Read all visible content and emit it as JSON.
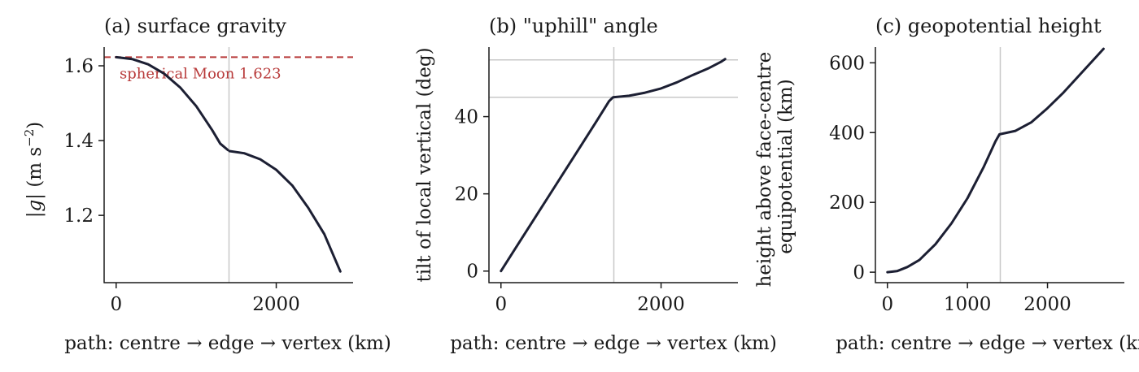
{
  "colors": {
    "series": "#1c1f33",
    "reference": "#b83a3a",
    "guide": "#c8c8c8",
    "axis": "#1a1a1a"
  },
  "chart_data": [
    {
      "type": "line",
      "title": "(a) surface gravity",
      "xlabel": "path: centre → edge → vertex (km)",
      "ylabel": "|g| (m s⁻²)",
      "xlim": [
        -150,
        2960
      ],
      "ylim": [
        1.02,
        1.65
      ],
      "xticks": [
        0,
        2000
      ],
      "yticks": [
        1.2,
        1.4,
        1.6
      ],
      "xtick_labels": [
        "0",
        "2000"
      ],
      "ytick_labels": [
        "1.2",
        "1.4",
        "1.6"
      ],
      "vlines": [
        1410
      ],
      "reference_line": {
        "y": 1.623,
        "label": "spherical Moon 1.623",
        "style": "dashed"
      },
      "series": [
        {
          "values": [
            [
              0,
              1.623
            ],
            [
              200,
              1.618
            ],
            [
              400,
              1.604
            ],
            [
              600,
              1.579
            ],
            [
              800,
              1.542
            ],
            [
              1000,
              1.492
            ],
            [
              1200,
              1.428
            ],
            [
              1300,
              1.392
            ],
            [
              1395,
              1.375
            ]
          ]
        },
        {
          "values": [
            [
              1415,
              1.372
            ],
            [
              1600,
              1.366
            ],
            [
              1800,
              1.35
            ],
            [
              2000,
              1.322
            ],
            [
              2200,
              1.28
            ],
            [
              2400,
              1.22
            ],
            [
              2600,
              1.15
            ],
            [
              2800,
              1.05
            ]
          ]
        }
      ]
    },
    {
      "type": "line",
      "title": "(b) \"uphill\" angle",
      "xlabel": "path: centre → edge → vertex (km)",
      "ylabel": "tilt of local vertical (deg)",
      "xlim": [
        -150,
        2960
      ],
      "ylim": [
        -3,
        58
      ],
      "xticks": [
        0,
        2000
      ],
      "yticks": [
        0,
        20,
        40
      ],
      "xtick_labels": [
        "0",
        "2000"
      ],
      "ytick_labels": [
        "0",
        "20",
        "40"
      ],
      "vlines": [
        1410
      ],
      "hlines": [
        45,
        54.7
      ],
      "series": [
        {
          "values": [
            [
              0,
              0
            ],
            [
              200,
              6.5
            ],
            [
              400,
              13
            ],
            [
              600,
              19.5
            ],
            [
              800,
              26
            ],
            [
              1000,
              32.5
            ],
            [
              1200,
              39
            ],
            [
              1350,
              44
            ],
            [
              1400,
              45
            ],
            [
              1600,
              45.4
            ],
            [
              1800,
              46.2
            ],
            [
              2000,
              47.3
            ],
            [
              2200,
              48.9
            ],
            [
              2400,
              50.8
            ],
            [
              2600,
              52.6
            ],
            [
              2750,
              54.2
            ],
            [
              2800,
              54.9
            ]
          ]
        }
      ]
    },
    {
      "type": "line",
      "title": "(c) geopotential height",
      "xlabel": "path: centre → edge → vertex (km)",
      "ylabel": "height above face-centre equipotential (km)",
      "xlim": [
        -150,
        2960
      ],
      "ylim": [
        -30,
        645
      ],
      "xticks": [
        0,
        1000,
        2000
      ],
      "yticks": [
        0,
        200,
        400,
        600
      ],
      "xtick_labels": [
        "0",
        "1000",
        "2000"
      ],
      "ytick_labels": [
        "0",
        "200",
        "400",
        "600"
      ],
      "vlines": [
        1410
      ],
      "series": [
        {
          "values": [
            [
              0,
              0
            ],
            [
              120,
              3
            ],
            [
              250,
              15
            ],
            [
              400,
              35
            ],
            [
              600,
              80
            ],
            [
              800,
              140
            ],
            [
              1000,
              212
            ],
            [
              1200,
              300
            ],
            [
              1350,
              375
            ],
            [
              1400,
              395
            ],
            [
              1600,
              405
            ],
            [
              1800,
              430
            ],
            [
              2000,
              470
            ],
            [
              2200,
              515
            ],
            [
              2400,
              565
            ],
            [
              2600,
              615
            ],
            [
              2700,
              640
            ]
          ]
        }
      ]
    }
  ]
}
